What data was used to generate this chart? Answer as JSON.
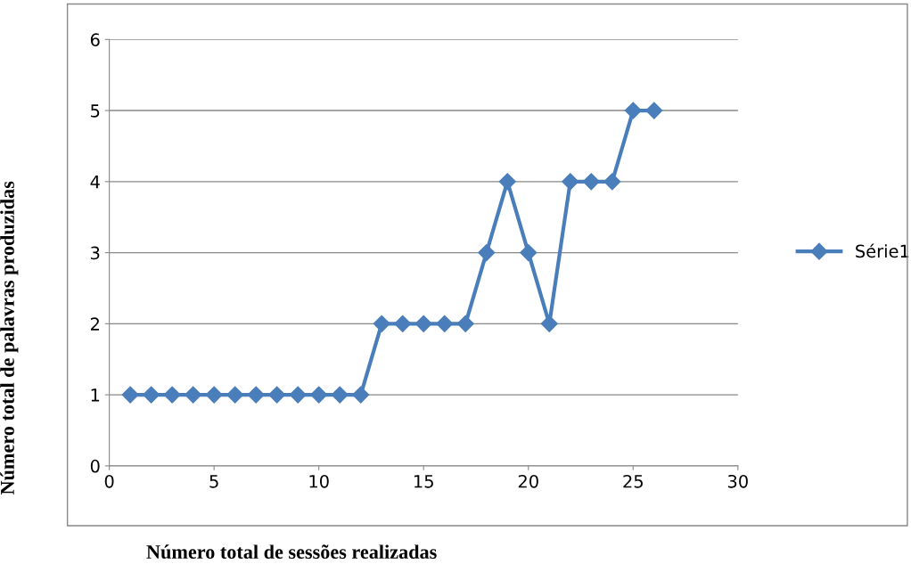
{
  "chart_data": {
    "type": "line",
    "xlabel": "Número total de sessões realizadas",
    "ylabel": "Número total de palavras produzidas",
    "x": [
      1,
      2,
      3,
      4,
      5,
      6,
      7,
      8,
      9,
      10,
      11,
      12,
      13,
      14,
      15,
      16,
      17,
      18,
      19,
      20,
      21,
      22,
      23,
      24,
      25,
      26
    ],
    "series": [
      {
        "name": "Série1",
        "color": "#4a7ebb",
        "values": [
          1,
          1,
          1,
          1,
          1,
          1,
          1,
          1,
          1,
          1,
          1,
          1,
          2,
          2,
          2,
          2,
          2,
          3,
          4,
          3,
          2,
          4,
          4,
          4,
          5,
          5
        ]
      }
    ],
    "xlim": [
      0,
      30
    ],
    "xticks": [
      0,
      5,
      10,
      15,
      20,
      25,
      30
    ],
    "ylim": [
      0,
      6
    ],
    "yticks": [
      0,
      1,
      2,
      3,
      4,
      5,
      6
    ],
    "grid": "y",
    "legend": "right",
    "marker": "diamond",
    "line_style": "solid"
  }
}
